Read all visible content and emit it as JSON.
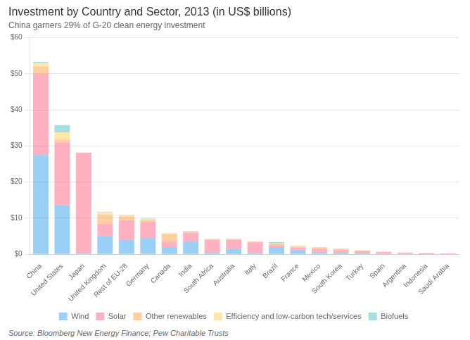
{
  "chart_data": {
    "type": "bar",
    "stacked": true,
    "title": "Investment by Country and Sector, 2013 (in US$ billions)",
    "subtitle": "China garners 29% of G-20 clean energy investment",
    "annotations": [
      "Source: Bloomberg New Energy Finance; Pew Charitable Trusts"
    ],
    "categories": [
      "China",
      "United States",
      "Japan",
      "United Kingdom",
      "Rest of EU-28",
      "Germany",
      "Canada",
      "India",
      "South Africa",
      "Australia",
      "Italy",
      "Brazil",
      "France",
      "Mexico",
      "South Korea",
      "Turkey",
      "Spain",
      "Argentina",
      "Indonesia",
      "Saudi Arabia"
    ],
    "series": [
      {
        "name": "Wind",
        "values": [
          27.5,
          13.5,
          0.2,
          5.0,
          4.0,
          4.5,
          2.0,
          3.5,
          0.5,
          1.5,
          0.3,
          2.0,
          1.0,
          0.5,
          0.5,
          0.3,
          0.1,
          0.1,
          0.05,
          0.0
        ]
      },
      {
        "name": "Solar",
        "values": [
          22.5,
          17.5,
          28.0,
          3.5,
          5.5,
          4.5,
          1.5,
          2.5,
          3.5,
          2.5,
          3.0,
          0.5,
          0.8,
          1.0,
          0.5,
          0.5,
          0.5,
          0.3,
          0.2,
          0.25
        ]
      },
      {
        "name": "Other renewables",
        "values": [
          2.0,
          0.8,
          0.0,
          2.5,
          1.0,
          0.5,
          2.0,
          0.2,
          0.2,
          0.2,
          0.2,
          0.5,
          0.3,
          0.3,
          0.5,
          0.2,
          0.1,
          0.05,
          0.05,
          0.0
        ]
      },
      {
        "name": "Efficiency and low-carbon tech/services",
        "values": [
          1.0,
          2.0,
          0.0,
          0.5,
          0.3,
          0.3,
          0.2,
          0.2,
          0.1,
          0.1,
          0.1,
          0.1,
          0.1,
          0.1,
          0.1,
          0.1,
          0.05,
          0.05,
          0.0,
          0.0
        ]
      },
      {
        "name": "Biofuels",
        "values": [
          0.3,
          2.0,
          0.0,
          0.2,
          0.1,
          0.1,
          0.1,
          0.1,
          0.0,
          0.0,
          0.0,
          0.3,
          0.1,
          0.1,
          0.0,
          0.0,
          0.0,
          0.0,
          0.0,
          0.0
        ]
      }
    ],
    "ylim": [
      0,
      60
    ],
    "yticks": [
      {
        "value": 0,
        "label": "$0"
      },
      {
        "value": 10,
        "label": "$10"
      },
      {
        "value": 20,
        "label": "$20"
      },
      {
        "value": 30,
        "label": "$30"
      },
      {
        "value": 40,
        "label": "$40"
      },
      {
        "value": 50,
        "label": "$50"
      },
      {
        "value": 60,
        "label": "$60"
      }
    ],
    "grid": true,
    "legend": "bottom"
  }
}
